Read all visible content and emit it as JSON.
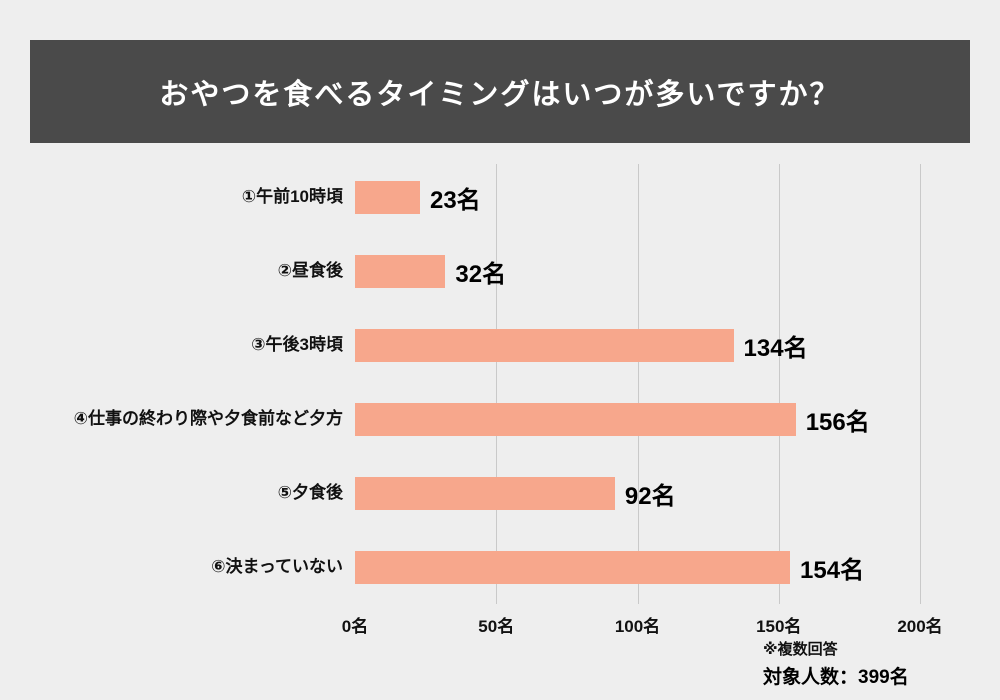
{
  "page": {
    "bg": "#eeeeee"
  },
  "header": {
    "title": "おやつを食べるタイミングはいつが多いですか？",
    "bg": "#4a4a4a",
    "color": "#ffffff"
  },
  "footer": {
    "note1": "※複数回答",
    "note2": "対象人数：399名"
  },
  "chart_data": {
    "type": "bar",
    "orientation": "horizontal",
    "title": "おやつを食べるタイミングはいつが多いですか？",
    "categories": [
      "①午前10時頃",
      "②昼食後",
      "③午後3時頃",
      "④仕事の終わり際や夕食前など夕方",
      "⑤夕食後",
      "⑥決まっていない"
    ],
    "values": [
      23,
      32,
      134,
      156,
      92,
      154
    ],
    "value_labels": [
      "23名",
      "32名",
      "134名",
      "156名",
      "92名",
      "154名"
    ],
    "x_ticks": [
      "0名",
      "50名",
      "100名",
      "150名",
      "200名"
    ],
    "xlim": [
      0,
      200
    ],
    "bar_color": "#f7a78c",
    "grid": true,
    "legend": "none"
  }
}
